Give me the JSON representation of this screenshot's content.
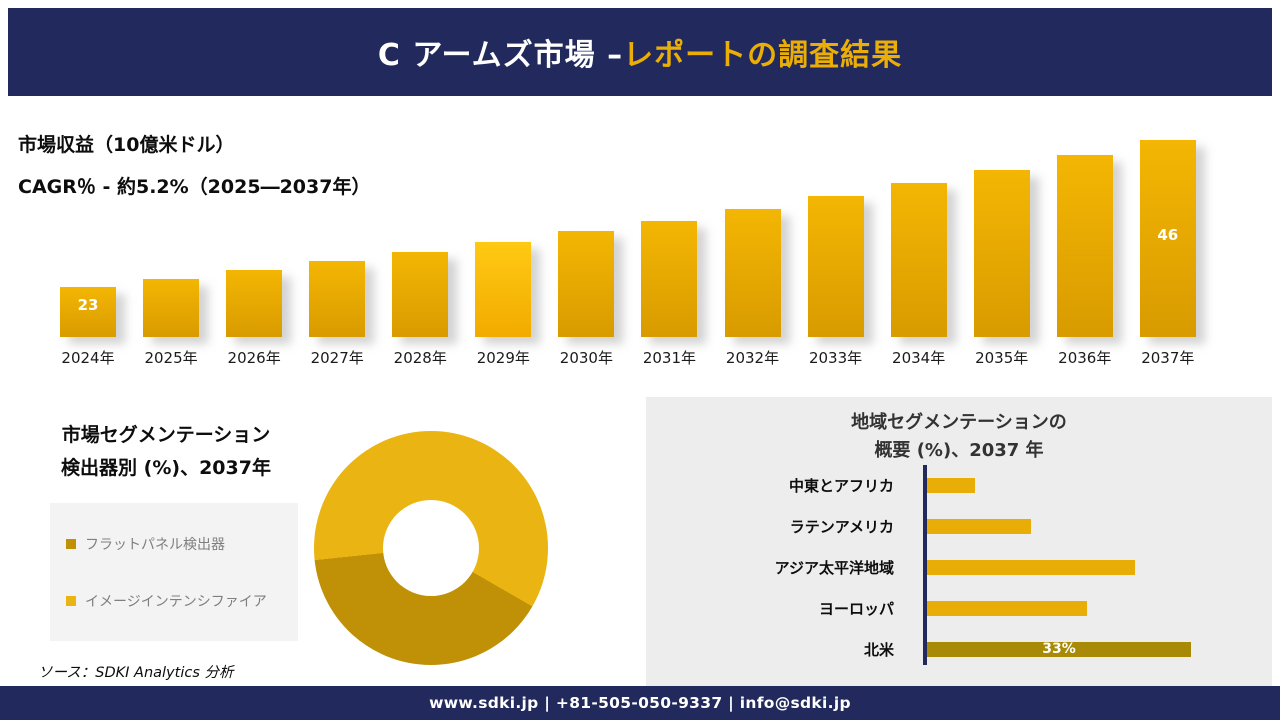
{
  "colors": {
    "navy": "#22295c",
    "accent_gold": "#ebae07",
    "gold": "#e9ad08",
    "gold_dark": "#c19007",
    "gold_bright": "#ffc41a",
    "panel_gray": "#ededed",
    "legend_gray": "#f3f3f3"
  },
  "header": {
    "title_main": "C アームズ市場 –",
    "title_accent": "レポートの調査結果"
  },
  "revenue": {
    "metric_label": "市場収益（10億米ドル）",
    "cagr_label": "CAGR％ - 約5.2%（2025―2037年）"
  },
  "segmentation": {
    "title_line1": "市場セグメンテーション",
    "title_line2": "検出器別 (%)、2037年",
    "source": "ソース：SDKI Analytics 分析"
  },
  "region": {
    "title_line1": "地域セグメンテーションの",
    "title_line2": "概要 (%)、2037 年"
  },
  "footer": {
    "text": "www.sdki.jp | +81-505-050-9337 | info@sdki.jp"
  },
  "chart_data": [
    {
      "type": "bar",
      "title": "市場収益（10億米ドル）",
      "subtitle": "CAGR％ - 約5.2%（2025―2037年）",
      "categories": [
        "2024年",
        "2025年",
        "2026年",
        "2027年",
        "2028年",
        "2029年",
        "2030年",
        "2031年",
        "2032年",
        "2033年",
        "2034年",
        "2035年",
        "2036年",
        "2037年"
      ],
      "values": [
        23,
        24.3,
        25.6,
        27,
        28.5,
        30,
        31.7,
        33.4,
        35.2,
        37.2,
        39.2,
        41.3,
        43.6,
        46
      ],
      "labeled_points": {
        "2024年": "23",
        "2037年": "46"
      },
      "highlight_category": "2029年",
      "xlabel": "",
      "ylabel": "市場収益（10億米ドル）",
      "ylim": [
        0,
        50
      ],
      "grid": false,
      "legend_position": "none"
    },
    {
      "type": "pie",
      "donut": true,
      "title": "市場セグメンテーション 検出器別 (%)、2037年",
      "labels": [
        "フラットパネル検出器",
        "イメージインテンシファイア"
      ],
      "values": [
        40,
        60
      ],
      "colors": [
        "#c09107",
        "#eab413"
      ],
      "legend_position": "left"
    },
    {
      "type": "bar",
      "orientation": "horizontal",
      "title": "地域セグメンテーションの概要 (%)、2037 年",
      "categories": [
        "中東とアフリカ",
        "ラテンアメリカ",
        "アジア太平洋地域",
        "ヨーロッパ",
        "北米"
      ],
      "values": [
        6,
        13,
        26,
        20,
        33
      ],
      "labeled_points": {
        "北米": "33%"
      },
      "xlim": [
        0,
        40
      ],
      "grid": false
    }
  ]
}
